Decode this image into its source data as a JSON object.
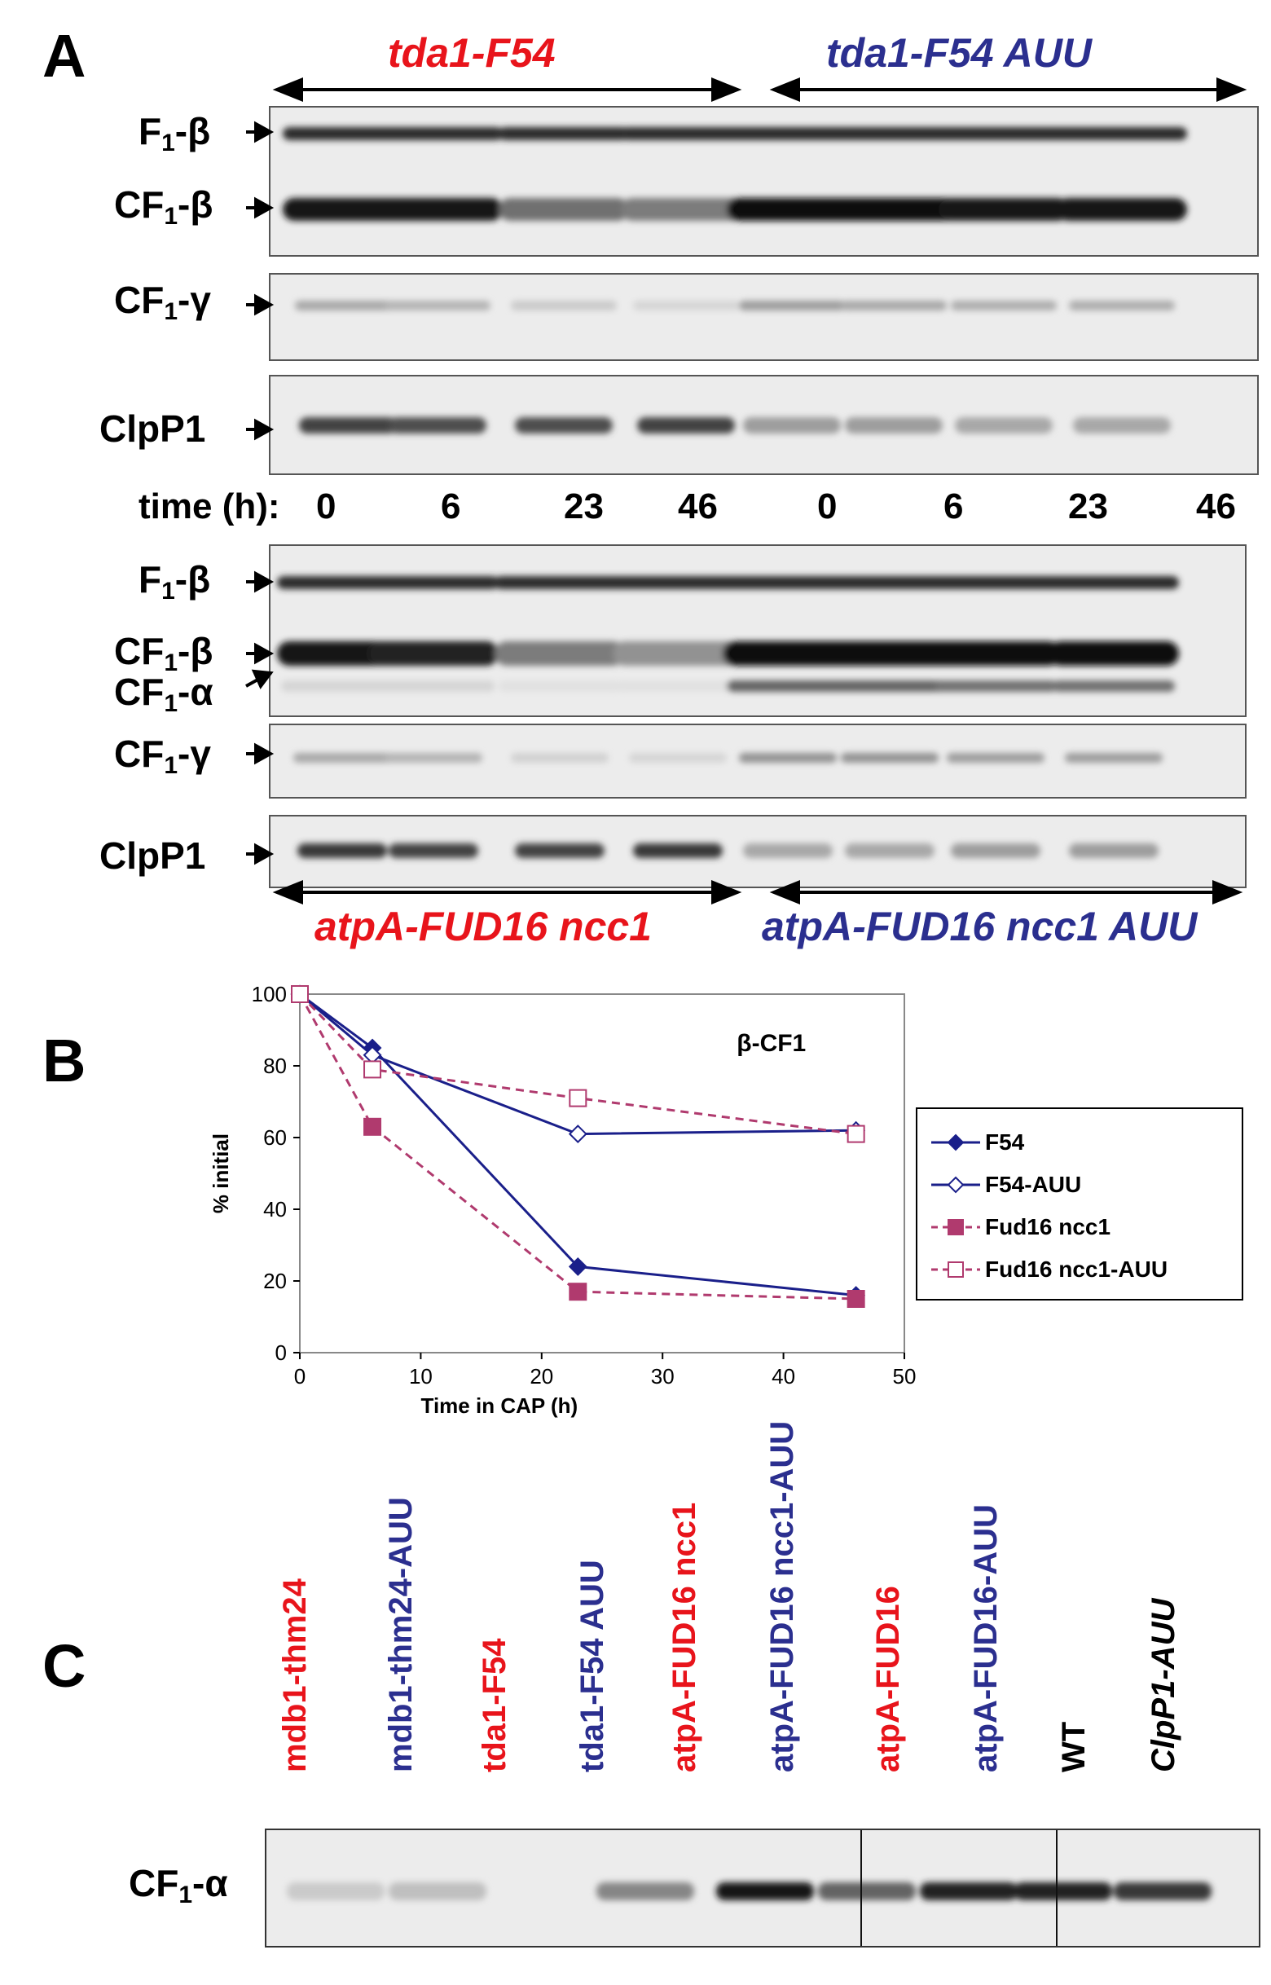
{
  "panel_A": {
    "letter": "A",
    "top_groups": {
      "left": "tda1-F54",
      "right": "tda1-F54 AUU"
    },
    "bottom_groups": {
      "left": "atpA-FUD16 ncc1",
      "right": "atpA-FUD16 ncc1 AUU"
    },
    "band_labels": {
      "f1b_main": "F",
      "f1b_sub": "1",
      "f1b_suffix": "-β",
      "cf1b_main": "CF",
      "cf1b_sub": "1",
      "cf1b_suffix": "-β",
      "cf1g_main": "CF",
      "cf1g_sub": "1",
      "cf1g_suffix": "-γ",
      "cf1a_main": "CF",
      "cf1a_sub": "1",
      "cf1a_suffix": "-α",
      "clpp1": "ClpP1"
    },
    "time_label": "time (h):",
    "time_points": [
      "0",
      "6",
      "23",
      "46",
      "0",
      "6",
      "23",
      "46"
    ],
    "band_intensity": {
      "top_f1b": [
        0.85,
        0.85,
        0.85,
        0.85,
        0.85,
        0.85,
        0.85,
        0.85
      ],
      "top_cf1b": [
        0.95,
        0.95,
        0.55,
        0.5,
        1.0,
        1.0,
        0.95,
        0.95
      ],
      "top_cf1g": [
        0.3,
        0.25,
        0.15,
        0.1,
        0.35,
        0.3,
        0.28,
        0.28
      ],
      "top_clpp1": [
        0.75,
        0.7,
        0.7,
        0.75,
        0.35,
        0.35,
        0.3,
        0.3
      ],
      "bottom_f1b": [
        0.85,
        0.85,
        0.85,
        0.85,
        0.85,
        0.85,
        0.85,
        0.85
      ],
      "bottom_cf1b": [
        0.95,
        0.9,
        0.5,
        0.4,
        1.0,
        1.0,
        1.0,
        1.0
      ],
      "bottom_cf1a": [
        0.1,
        0.1,
        0.05,
        0.05,
        0.6,
        0.6,
        0.55,
        0.55
      ],
      "bottom_cf1g": [
        0.3,
        0.25,
        0.12,
        0.1,
        0.4,
        0.4,
        0.35,
        0.35
      ],
      "bottom_clpp1": [
        0.8,
        0.75,
        0.75,
        0.8,
        0.3,
        0.3,
        0.35,
        0.35
      ]
    }
  },
  "panel_B": {
    "letter": "B"
  },
  "chart_data": {
    "type": "line",
    "title": "β-CF1",
    "xlabel": "Time in CAP (h)",
    "ylabel": "% initial",
    "xlim": [
      0,
      50
    ],
    "ylim": [
      0,
      100
    ],
    "xticks": [
      0,
      10,
      20,
      30,
      40,
      50
    ],
    "yticks": [
      0,
      20,
      40,
      60,
      80,
      100
    ],
    "legend_position": "right",
    "x": [
      0,
      6,
      23,
      46
    ],
    "series": [
      {
        "name": "F54",
        "values": [
          100,
          85,
          24,
          16
        ],
        "color": "#1a1f8a",
        "dashed": false,
        "marker": "diamond",
        "filled": true
      },
      {
        "name": "F54-AUU",
        "values": [
          100,
          83,
          61,
          62
        ],
        "color": "#1a1f8a",
        "dashed": false,
        "marker": "diamond",
        "filled": false
      },
      {
        "name": "Fud16 ncc1",
        "values": [
          100,
          63,
          17,
          15
        ],
        "color": "#b03a6e",
        "dashed": true,
        "marker": "square",
        "filled": true
      },
      {
        "name": "Fud16 ncc1-AUU",
        "values": [
          100,
          79,
          71,
          61
        ],
        "color": "#b03a6e",
        "dashed": true,
        "marker": "square",
        "filled": false
      }
    ]
  },
  "panel_C": {
    "letter": "C",
    "band_label_main": "CF",
    "band_label_sub": "1",
    "band_label_suffix": "-α",
    "lanes": [
      {
        "label": "mdb1-thm24",
        "color": "#e8141b",
        "italic": false,
        "intensity": 0.15
      },
      {
        "label": "mdb1-thm24-AUU",
        "color": "#2b2f8f",
        "italic": false,
        "intensity": 0.2
      },
      {
        "label": "tda1-F54",
        "color": "#e8141b",
        "italic": false,
        "intensity": 0.0
      },
      {
        "label": "tda1-F54 AUU",
        "color": "#2b2f8f",
        "italic": false,
        "intensity": 0.0
      },
      {
        "label": "atpA-FUD16 ncc1",
        "color": "#e8141b",
        "italic": false,
        "intensity": 0.45
      },
      {
        "label": "atpA-FUD16 ncc1-AUU",
        "color": "#2b2f8f",
        "italic": false,
        "intensity": 0.95
      },
      {
        "label": "atpA-FUD16",
        "color": "#e8141b",
        "italic": false,
        "intensity": 0.6
      },
      {
        "label": "atpA-FUD16-AUU",
        "color": "#2b2f8f",
        "italic": false,
        "intensity": 0.9
      },
      {
        "label": "WT",
        "color": "#000000",
        "italic": false,
        "intensity": 0.9
      },
      {
        "label": "ClpP1-AUU",
        "color": "#000000",
        "italic": true,
        "intensity": 0.8
      }
    ]
  }
}
